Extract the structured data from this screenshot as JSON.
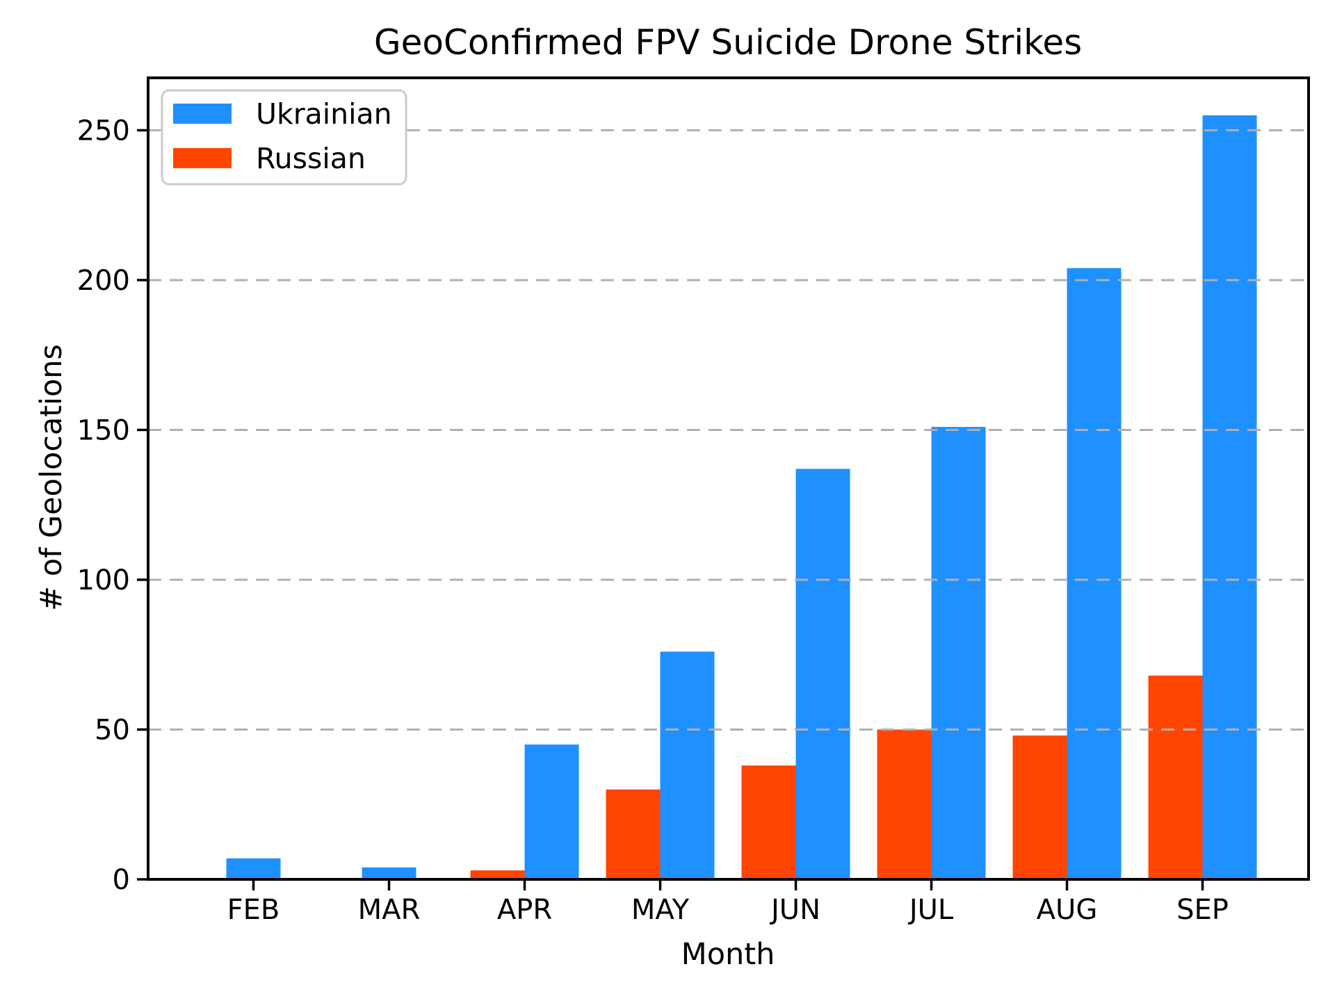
{
  "chart_data": {
    "type": "bar",
    "title": "GeoConfirmed FPV Suicide Drone Strikes",
    "xlabel": "Month",
    "ylabel": "# of Geolocations",
    "categories": [
      "FEB",
      "MAR",
      "APR",
      "MAY",
      "JUN",
      "JUL",
      "AUG",
      "SEP"
    ],
    "series": [
      {
        "name": "Ukrainian",
        "color": "#1E90FF",
        "values": [
          7,
          4,
          45,
          76,
          137,
          151,
          204,
          255
        ]
      },
      {
        "name": "Russian",
        "color": "#FF4500",
        "values": [
          0,
          0,
          3,
          30,
          38,
          50,
          48,
          68
        ]
      }
    ],
    "yticks": [
      0,
      50,
      100,
      150,
      200,
      250
    ],
    "ylim": [
      0,
      267.5
    ],
    "grid": "dashed-horizontal",
    "grid_color": "#b0b0b0",
    "axis_color": "#000000",
    "legend_position": "upper-left"
  }
}
